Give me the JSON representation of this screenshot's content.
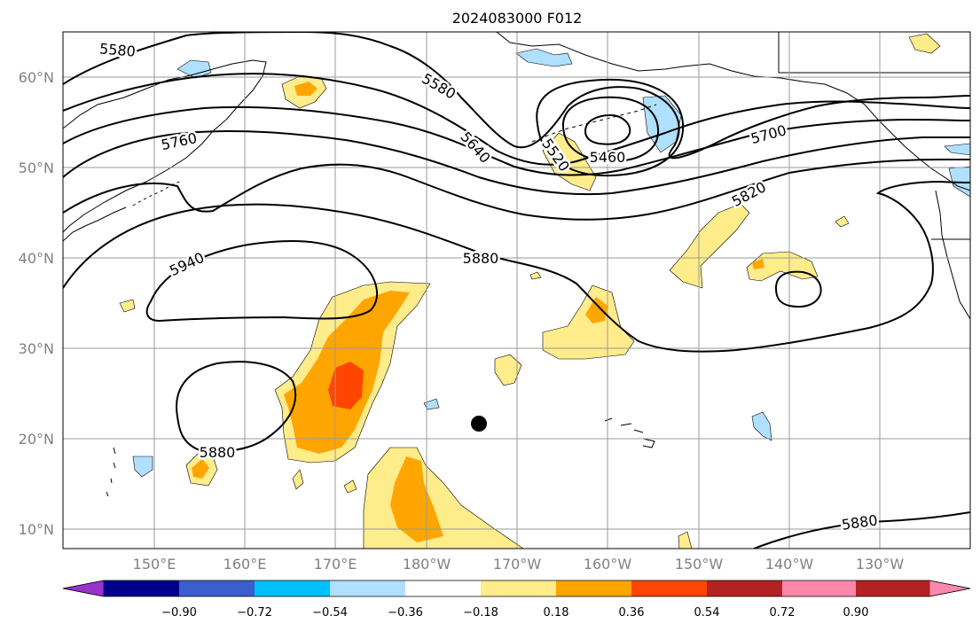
{
  "title": "2024083000 F012",
  "map": {
    "lat_ticks": [
      "60°N",
      "50°N",
      "40°N",
      "30°N",
      "20°N",
      "10°N"
    ],
    "lon_ticks": [
      "150°E",
      "160°E",
      "170°E",
      "180°W",
      "170°W",
      "160°W",
      "150°W",
      "140°W",
      "130°W"
    ],
    "contour_labels": [
      {
        "key": "c5580a",
        "text": "5580"
      },
      {
        "key": "c5580b",
        "text": "5580"
      },
      {
        "key": "c5640",
        "text": "5640"
      },
      {
        "key": "c5520",
        "text": "5520"
      },
      {
        "key": "c5460",
        "text": "5460"
      },
      {
        "key": "c5700",
        "text": "5700"
      },
      {
        "key": "c5760",
        "text": "5760"
      },
      {
        "key": "c5820",
        "text": "5820"
      },
      {
        "key": "c5880a",
        "text": "5880"
      },
      {
        "key": "c5880b",
        "text": "5880"
      },
      {
        "key": "c5880c",
        "text": "5880"
      },
      {
        "key": "c5940",
        "text": "5940"
      }
    ],
    "marker": "storm-position-dot"
  },
  "colorbar": {
    "ticks": [
      "−0.90",
      "−0.72",
      "−0.54",
      "−0.36",
      "−0.18",
      "0.18",
      "0.36",
      "0.54",
      "0.72",
      "0.90"
    ],
    "colors": [
      "#9932cc",
      "#00008b",
      "#3a5fcd",
      "#00bfff",
      "#b0e0ff",
      "#ffffff",
      "#ffec8b",
      "#ffa500",
      "#ff4500",
      "#b22222",
      "#ff88aa"
    ]
  }
}
